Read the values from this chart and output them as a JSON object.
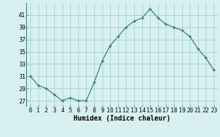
{
  "x": [
    0,
    1,
    2,
    3,
    4,
    5,
    6,
    7,
    8,
    9,
    10,
    11,
    12,
    13,
    14,
    15,
    16,
    17,
    18,
    19,
    20,
    21,
    22,
    23
  ],
  "y": [
    31,
    29.5,
    29,
    28,
    27,
    27.5,
    27,
    27,
    30,
    33.5,
    36,
    37.5,
    39,
    40,
    40.5,
    42,
    40.5,
    39.5,
    39,
    38.5,
    37.5,
    35.5,
    34,
    32
  ],
  "line_color": "#2E7D6E",
  "marker": "+",
  "marker_size": 3.5,
  "marker_lw": 1.0,
  "bg_color": "#D8F0F0",
  "grid_color": "#A8CCCC",
  "xlabel": "Humidex (Indice chaleur)",
  "ylim": [
    26,
    43
  ],
  "xlim": [
    -0.5,
    23.5
  ],
  "yticks": [
    27,
    29,
    31,
    33,
    35,
    37,
    39,
    41
  ],
  "xticks": [
    0,
    1,
    2,
    3,
    4,
    5,
    6,
    7,
    8,
    9,
    10,
    11,
    12,
    13,
    14,
    15,
    16,
    17,
    18,
    19,
    20,
    21,
    22,
    23
  ],
  "xtick_labels": [
    "0",
    "1",
    "2",
    "3",
    "4",
    "5",
    "6",
    "7",
    "8",
    "9",
    "10",
    "11",
    "12",
    "13",
    "14",
    "15",
    "16",
    "17",
    "18",
    "19",
    "20",
    "21",
    "22",
    "23"
  ],
  "xlabel_fontsize": 7,
  "tick_fontsize": 6,
  "line_width": 0.9
}
